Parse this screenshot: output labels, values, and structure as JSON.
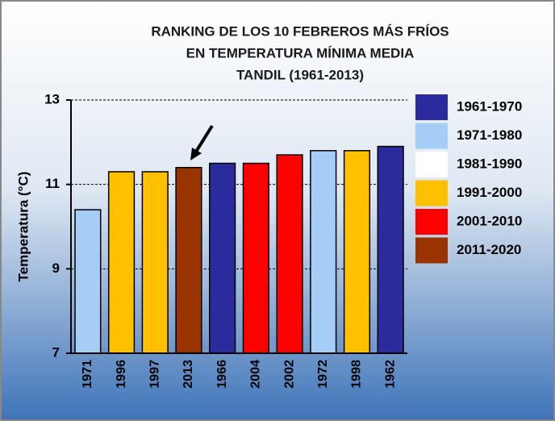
{
  "chart_data": {
    "type": "bar",
    "title": [
      "RANKING  DE LOS 10 FEBREROS  MÁS FRÍOS",
      "EN TEMPERATURA  MÍNIMA MEDIA",
      "TANDIL  (1961-2013)"
    ],
    "y_label": "Temperatura (°C)",
    "categories": [
      "1971",
      "1996",
      "1997",
      "2013",
      "1966",
      "2004",
      "2002",
      "1972",
      "1998",
      "1962"
    ],
    "values": [
      10.4,
      11.3,
      11.3,
      11.4,
      11.5,
      11.5,
      11.7,
      11.8,
      11.8,
      11.9
    ],
    "colors": [
      "#a6cdf5",
      "#ffc000",
      "#ffc000",
      "#993300",
      "#2b2b9e",
      "#ff0000",
      "#ff0000",
      "#a6cdf5",
      "#ffc000",
      "#2b2b9e"
    ],
    "legend": [
      {
        "name": "1961-1970",
        "color": "#2b2b9e"
      },
      {
        "name": "1971-1980",
        "color": "#a6cdf5"
      },
      {
        "name": "1981-1990",
        "color": "#ffffff"
      },
      {
        "name": "1991-2000",
        "color": "#ffc000"
      },
      {
        "name": "2001-2010",
        "color": "#ff0000"
      },
      {
        "name": "2011-2020",
        "color": "#993300"
      }
    ],
    "ylim": [
      7,
      13
    ],
    "yticks": [
      7,
      9,
      11,
      13
    ],
    "grid": true
  }
}
